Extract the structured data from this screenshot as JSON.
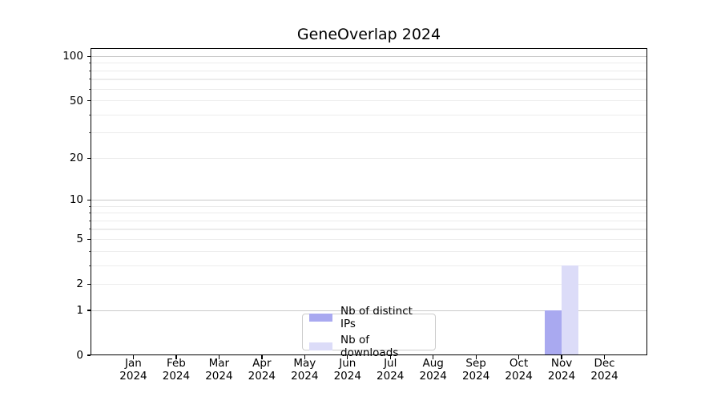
{
  "chart_data": {
    "type": "bar",
    "title": "GeneOverlap 2024",
    "categories": [
      {
        "month": "Jan",
        "year": "2024"
      },
      {
        "month": "Feb",
        "year": "2024"
      },
      {
        "month": "Mar",
        "year": "2024"
      },
      {
        "month": "Apr",
        "year": "2024"
      },
      {
        "month": "May",
        "year": "2024"
      },
      {
        "month": "Jun",
        "year": "2024"
      },
      {
        "month": "Jul",
        "year": "2024"
      },
      {
        "month": "Aug",
        "year": "2024"
      },
      {
        "month": "Sep",
        "year": "2024"
      },
      {
        "month": "Oct",
        "year": "2024"
      },
      {
        "month": "Nov",
        "year": "2024"
      },
      {
        "month": "Dec",
        "year": "2024"
      }
    ],
    "series": [
      {
        "name": "Nb of distinct IPs",
        "color": "#a9a9f0",
        "values": [
          0,
          0,
          0,
          0,
          0,
          0,
          0,
          0,
          0,
          0,
          1,
          0
        ]
      },
      {
        "name": "Nb of downloads",
        "color": "#dcdcf8",
        "values": [
          0,
          0,
          0,
          0,
          0,
          0,
          0,
          0,
          0,
          0,
          3,
          0
        ]
      }
    ],
    "y_axis": {
      "scale": "log1p",
      "ticks": [
        0,
        1,
        2,
        5,
        10,
        20,
        50,
        100
      ],
      "major_gridlines": [
        1,
        10,
        100
      ],
      "minor_gridlines": [
        3,
        4,
        6,
        7,
        8,
        9,
        30,
        40,
        60,
        70,
        80,
        90
      ],
      "max": 114
    },
    "xlabel": "",
    "ylabel": "",
    "grid": true,
    "legend_position": "lower center",
    "colors": {
      "background": "#ffffff",
      "spine": "#000000",
      "major_grid": "#c9c9c9",
      "minor_grid": "#ececec"
    }
  }
}
